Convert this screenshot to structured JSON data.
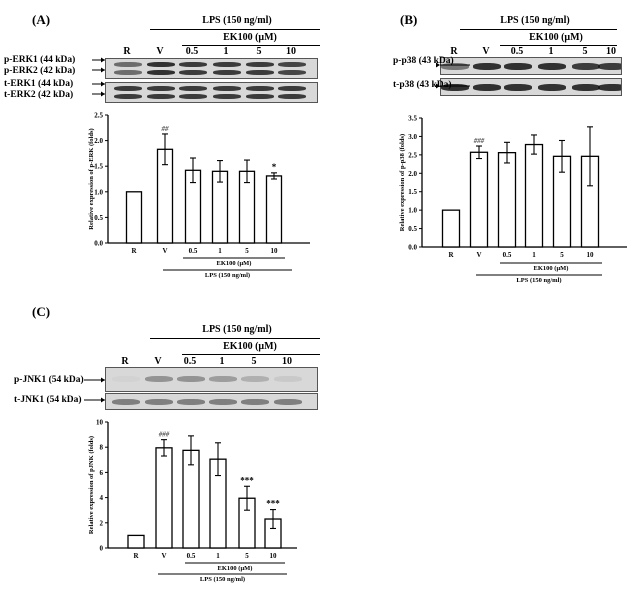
{
  "panels": {
    "A": {
      "label": "(A)",
      "lps": "LPS (150 ng/ml)",
      "ek": "EK100 (μM)",
      "lanes": [
        "R",
        "V",
        "0.5",
        "1",
        "5",
        "10"
      ],
      "blots": [
        "p-ERK1 (44 kDa)",
        "p-ERK2 (42 kDa)",
        "t-ERK1 (44 kDa)",
        "t-ERK2 (42 kDa)"
      ]
    },
    "B": {
      "label": "(B)",
      "lps": "LPS (150 ng/ml)",
      "ek": "EK100 (μM)",
      "lanes": [
        "R",
        "V",
        "0.5",
        "1",
        "5",
        "10"
      ],
      "blots": [
        "p-p38 (43 kDa)",
        "t-p38 (43 kDa)"
      ]
    },
    "C": {
      "label": "(C)",
      "lps": "LPS (150 ng/ml)",
      "ek": "EK100 (μM)",
      "lanes": [
        "R",
        "V",
        "0.5",
        "1",
        "5",
        "10"
      ],
      "blots": [
        "p-JNK1 (54 kDa)",
        "t-JNK1 (54 kDa)"
      ]
    }
  },
  "chart_data": [
    {
      "type": "bar",
      "panel": "A",
      "categories": [
        "R",
        "V",
        "0.5",
        "1",
        "5",
        "10"
      ],
      "values": [
        1.0,
        1.83,
        1.42,
        1.4,
        1.4,
        1.31
      ],
      "errors": [
        0,
        0.3,
        0.24,
        0.21,
        0.22,
        0.06
      ],
      "annotations": [
        "",
        "##",
        "",
        "",
        "",
        "*"
      ],
      "ylabel": "Relative expression of p-ERK (folds)",
      "ylim": [
        0,
        2.5
      ],
      "yticks": [
        "0.0",
        "0.5",
        "1.0",
        "1.5",
        "2.0",
        "2.5"
      ],
      "group_labels": [
        "EK100 (μM)",
        "LPS (150 ng/ml)"
      ]
    },
    {
      "type": "bar",
      "panel": "B",
      "categories": [
        "R",
        "V",
        "0.5",
        "1",
        "5",
        "10"
      ],
      "values": [
        1.0,
        2.57,
        2.56,
        2.78,
        2.46,
        2.46
      ],
      "errors": [
        0,
        0.17,
        0.28,
        0.26,
        0.43,
        0.8
      ],
      "annotations": [
        "",
        "###",
        "",
        "",
        "",
        ""
      ],
      "ylabel": "Relative expression of p-p38 (folds)",
      "ylim": [
        0,
        3.5
      ],
      "yticks": [
        "0.0",
        "0.5",
        "1.0",
        "1.5",
        "2.0",
        "2.5",
        "3.0",
        "3.5"
      ],
      "group_labels": [
        "EK100 (μM)",
        "LPS (150 ng/ml)"
      ]
    },
    {
      "type": "bar",
      "panel": "C",
      "categories": [
        "R",
        "V",
        "0.5",
        "1",
        "5",
        "10"
      ],
      "values": [
        1.0,
        7.95,
        7.75,
        7.05,
        3.95,
        2.3
      ],
      "errors": [
        0,
        0.65,
        1.15,
        1.3,
        0.95,
        0.75
      ],
      "annotations": [
        "",
        "###",
        "",
        "",
        "***",
        "***"
      ],
      "ylabel": "Relative expression of pJNK (folds)",
      "ylim": [
        0,
        10
      ],
      "yticks": [
        "0",
        "2",
        "4",
        "6",
        "8",
        "10"
      ],
      "group_labels": [
        "EK100 (μM)",
        "LPS (150 ng/ml)"
      ]
    }
  ]
}
